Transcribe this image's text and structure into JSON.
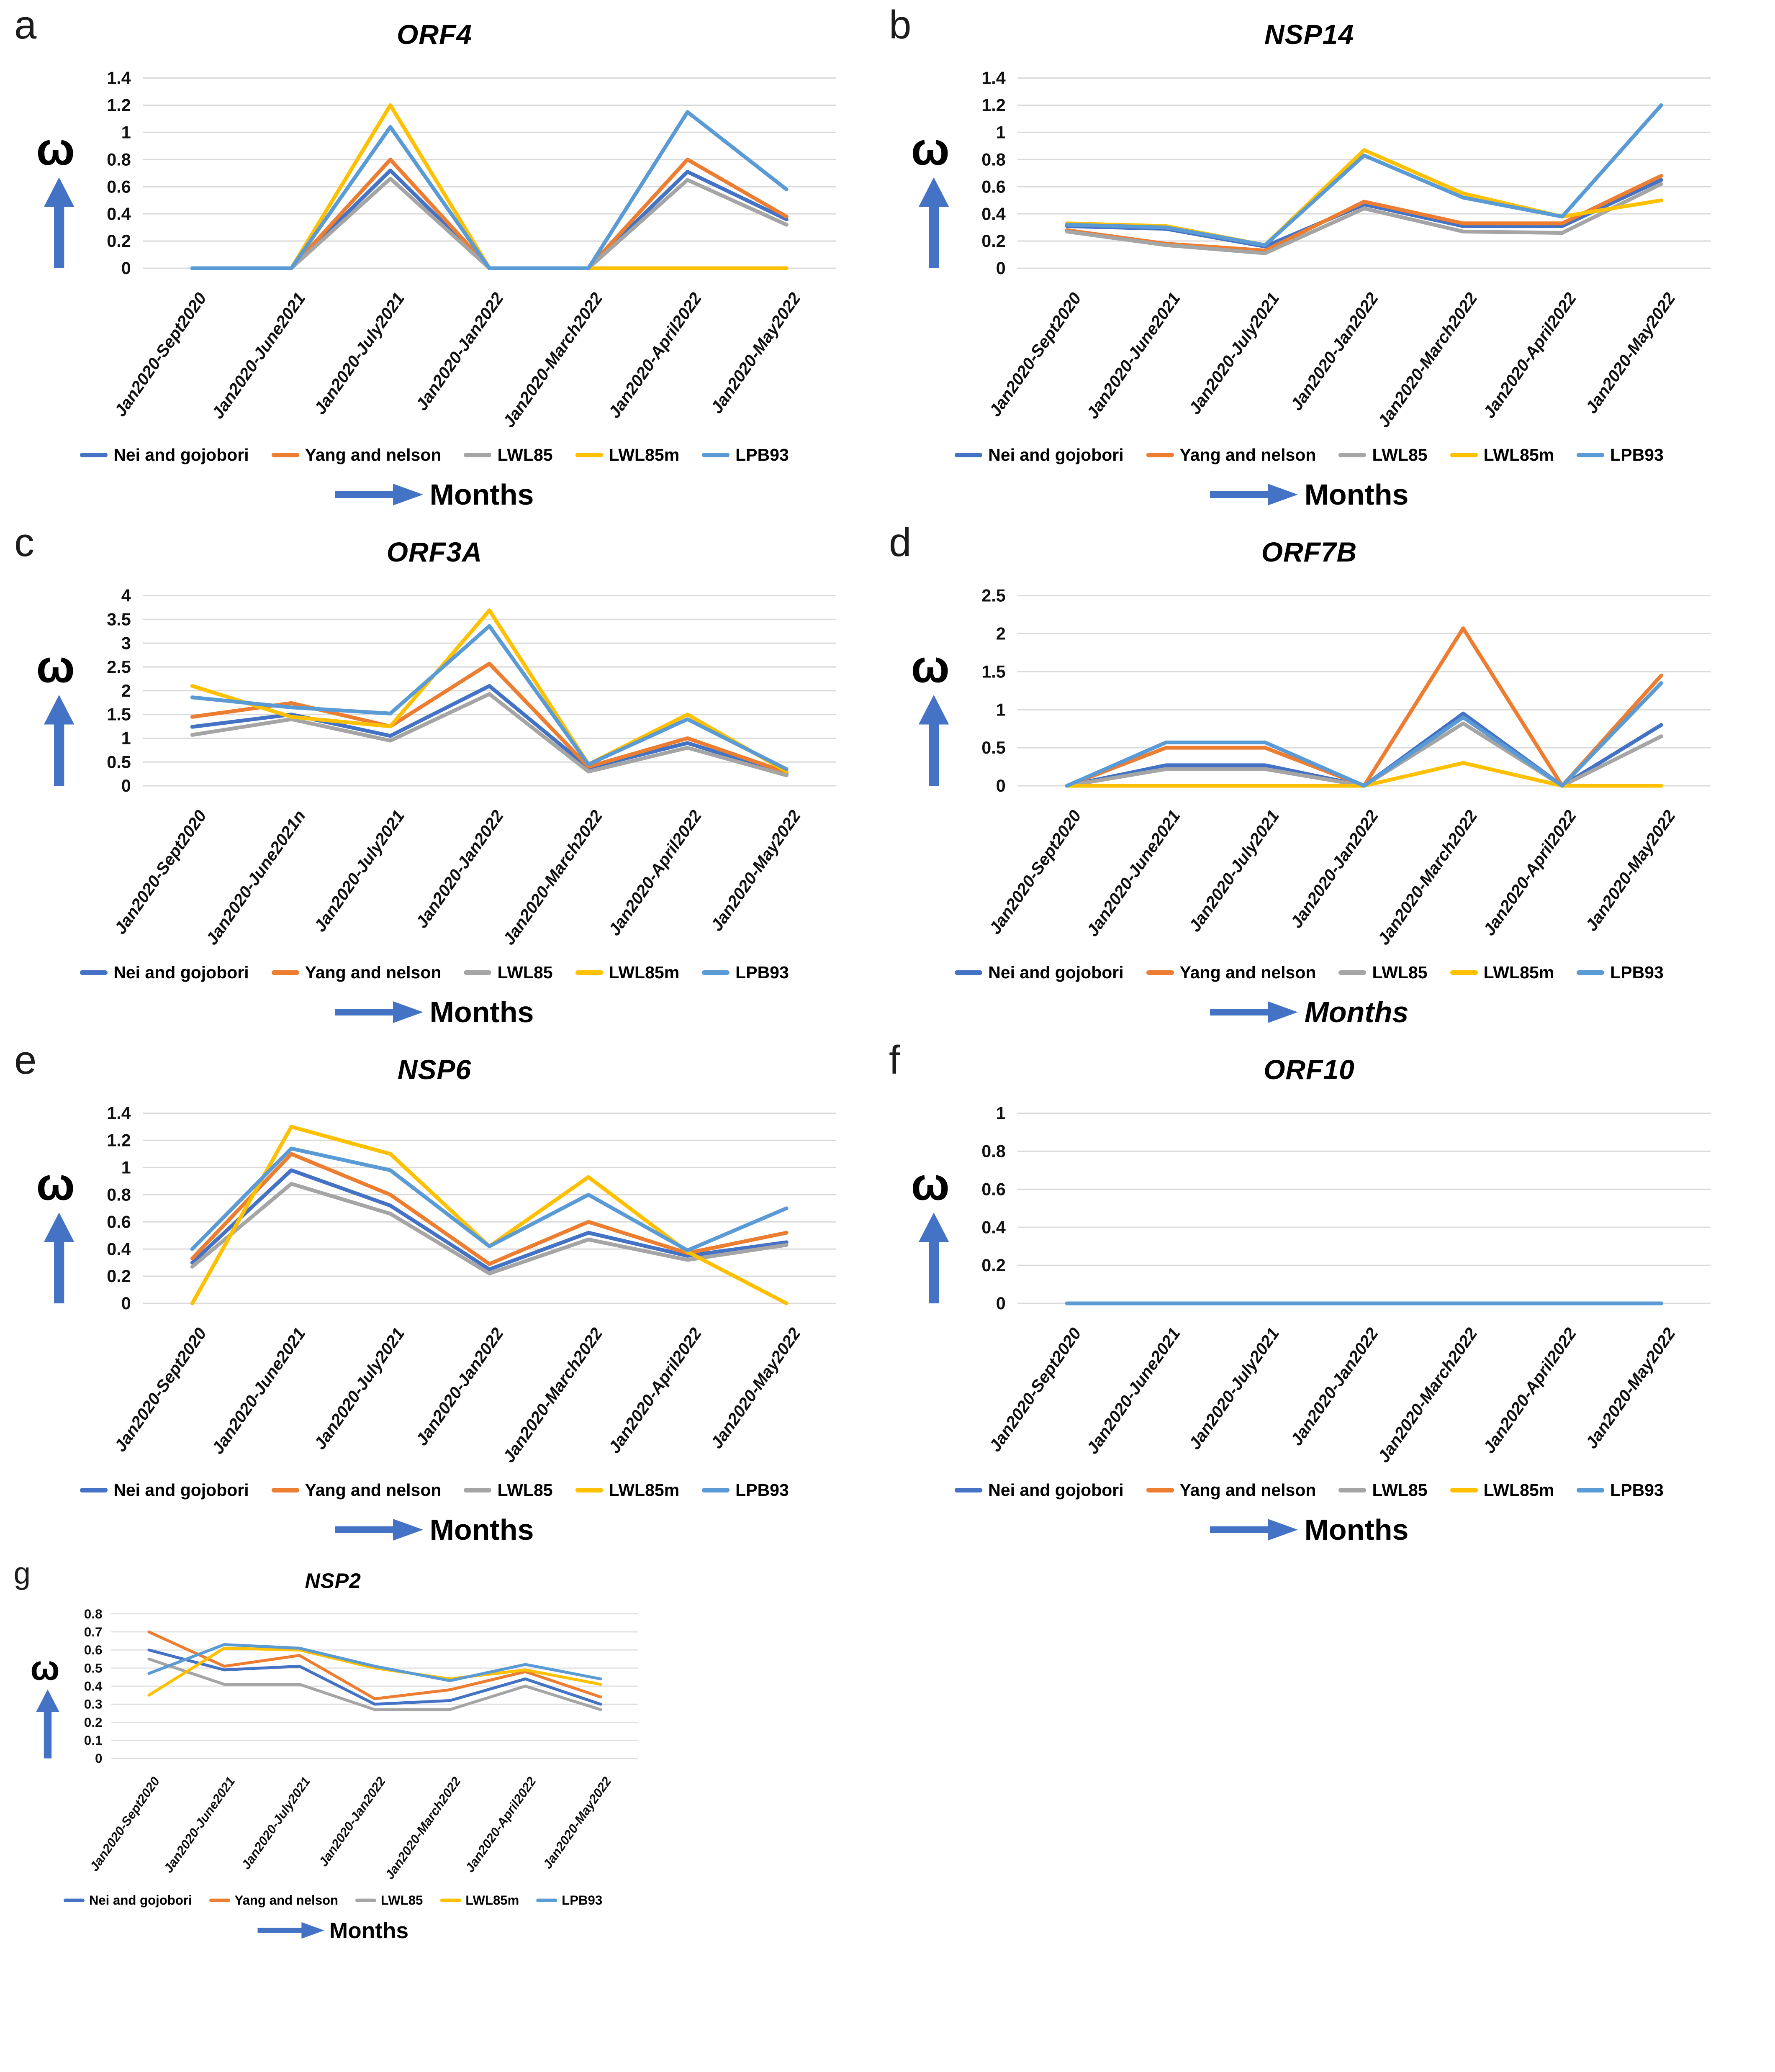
{
  "figure": {
    "axis": {
      "y_symbol": "ω",
      "x_label": "Months"
    },
    "colors": {
      "arrow": "#4472C4",
      "grid": "#DADADA",
      "nei_and_gojobori": "#4472C4",
      "yang_and_nelson": "#ED7D31",
      "lwl85": "#A5A5A5",
      "lwl85m": "#FFC000",
      "lpb93": "#5B9BD5"
    }
  },
  "chart_data": [
    {
      "panel_letter": "a",
      "type": "line",
      "title": "ORF4",
      "ylim": [
        0,
        1.4
      ],
      "ytick_step": 0.2,
      "grid": true,
      "legend_position": "bottom",
      "xlabel_italic": false,
      "categories": [
        "Jan2020-Sept2020",
        "Jan2020-June2021",
        "Jan2020-July2021",
        "Jan2020-Jan2022",
        "Jan2020-March2022",
        "Jan2020-April2022",
        "Jan2020-May2022"
      ],
      "series": [
        {
          "name": "Nei and gojobori",
          "color": "#4472C4",
          "values": [
            0,
            0,
            0.72,
            0,
            0,
            0.71,
            0.36
          ]
        },
        {
          "name": "Yang and nelson",
          "color": "#ED7D31",
          "values": [
            0,
            0,
            0.8,
            0,
            0,
            0.8,
            0.38
          ]
        },
        {
          "name": "LWL85",
          "color": "#A5A5A5",
          "values": [
            0,
            0,
            0.66,
            0,
            0,
            0.65,
            0.32
          ]
        },
        {
          "name": "LWL85m",
          "color": "#FFC000",
          "values": [
            0,
            0,
            1.2,
            0,
            0,
            0,
            0
          ]
        },
        {
          "name": "LPB93",
          "color": "#5B9BD5",
          "values": [
            0,
            0,
            1.04,
            0,
            0,
            1.15,
            0.58
          ]
        }
      ]
    },
    {
      "panel_letter": "b",
      "type": "line",
      "title": "NSP14",
      "ylim": [
        0,
        1.4
      ],
      "ytick_step": 0.2,
      "grid": true,
      "legend_position": "bottom",
      "xlabel_italic": false,
      "categories": [
        "Jan2020-Sept2020",
        "Jan2020-June2021",
        "Jan2020-July2021",
        "Jan2020-Jan2022",
        "Jan2020-March2022",
        "Jan2020-April2022",
        "Jan2020-May2022"
      ],
      "series": [
        {
          "name": "Nei and gojobori",
          "color": "#4472C4",
          "values": [
            0.31,
            0.29,
            0.16,
            0.47,
            0.31,
            0.31,
            0.65
          ]
        },
        {
          "name": "Yang and nelson",
          "color": "#ED7D31",
          "values": [
            0.28,
            0.18,
            0.13,
            0.49,
            0.33,
            0.33,
            0.68
          ]
        },
        {
          "name": "LWL85",
          "color": "#A5A5A5",
          "values": [
            0.27,
            0.17,
            0.11,
            0.44,
            0.27,
            0.26,
            0.62
          ]
        },
        {
          "name": "LWL85m",
          "color": "#FFC000",
          "values": [
            0.33,
            0.31,
            0.17,
            0.87,
            0.55,
            0.38,
            0.5
          ]
        },
        {
          "name": "LPB93",
          "color": "#5B9BD5",
          "values": [
            0.32,
            0.3,
            0.17,
            0.83,
            0.52,
            0.38,
            1.2
          ]
        }
      ]
    },
    {
      "panel_letter": "c",
      "type": "line",
      "title": "ORF3A",
      "ylim": [
        0,
        4
      ],
      "ytick_step": 0.5,
      "grid": true,
      "legend_position": "bottom",
      "xlabel_italic": false,
      "categories": [
        "Jan2020-Sept2020",
        "Jan2020-June2021n",
        "Jan2020-July2021",
        "Jan2020-Jan2022",
        "Jan2020-March2022",
        "Jan2020-April2022",
        "Jan2020-May2022"
      ],
      "series": [
        {
          "name": "Nei and gojobori",
          "color": "#4472C4",
          "values": [
            1.24,
            1.5,
            1.05,
            2.1,
            0.38,
            0.9,
            0.25
          ]
        },
        {
          "name": "Yang and nelson",
          "color": "#ED7D31",
          "values": [
            1.45,
            1.74,
            1.25,
            2.57,
            0.4,
            1.0,
            0.28
          ]
        },
        {
          "name": "LWL85",
          "color": "#A5A5A5",
          "values": [
            1.07,
            1.4,
            0.95,
            1.93,
            0.3,
            0.8,
            0.22
          ]
        },
        {
          "name": "LWL85m",
          "color": "#FFC000",
          "values": [
            2.1,
            1.45,
            1.25,
            3.69,
            0.45,
            1.5,
            0.3
          ]
        },
        {
          "name": "LPB93",
          "color": "#5B9BD5",
          "values": [
            1.86,
            1.65,
            1.52,
            3.36,
            0.45,
            1.4,
            0.35
          ]
        }
      ]
    },
    {
      "panel_letter": "d",
      "type": "line",
      "title": "ORF7B",
      "ylim": [
        0,
        2.5
      ],
      "ytick_step": 0.5,
      "grid": true,
      "legend_position": "bottom",
      "xlabel_italic": true,
      "categories": [
        "Jan2020-Sept2020",
        "Jan2020-June2021",
        "Jan2020-July2021",
        "Jan2020-Jan2022",
        "Jan2020-March2022",
        "Jan2020-April2022",
        "Jan2020-May2022"
      ],
      "series": [
        {
          "name": "Nei and gojobori",
          "color": "#4472C4",
          "values": [
            0,
            0.27,
            0.27,
            0,
            0.95,
            0,
            0.8
          ]
        },
        {
          "name": "Yang and nelson",
          "color": "#ED7D31",
          "values": [
            0,
            0.5,
            0.5,
            0,
            2.07,
            0,
            1.45
          ]
        },
        {
          "name": "LWL85",
          "color": "#A5A5A5",
          "values": [
            0,
            0.22,
            0.22,
            0,
            0.82,
            0,
            0.65
          ]
        },
        {
          "name": "LWL85m",
          "color": "#FFC000",
          "values": [
            0,
            0,
            0,
            0,
            0.3,
            0,
            0
          ]
        },
        {
          "name": "LPB93",
          "color": "#5B9BD5",
          "values": [
            0,
            0.57,
            0.57,
            0,
            0.9,
            0,
            1.35
          ]
        }
      ]
    },
    {
      "panel_letter": "e",
      "type": "line",
      "title": "NSP6",
      "ylim": [
        0,
        1.4
      ],
      "ytick_step": 0.2,
      "grid": true,
      "legend_position": "bottom",
      "xlabel_italic": false,
      "categories": [
        "Jan2020-Sept2020",
        "Jan2020-June2021",
        "Jan2020-July2021",
        "Jan2020-Jan2022",
        "Jan2020-March2022",
        "Jan2020-April2022",
        "Jan2020-May2022"
      ],
      "series": [
        {
          "name": "Nei and gojobori",
          "color": "#4472C4",
          "values": [
            0.3,
            0.98,
            0.72,
            0.25,
            0.52,
            0.35,
            0.45
          ]
        },
        {
          "name": "Yang and nelson",
          "color": "#ED7D31",
          "values": [
            0.33,
            1.1,
            0.8,
            0.29,
            0.6,
            0.37,
            0.52
          ]
        },
        {
          "name": "LWL85",
          "color": "#A5A5A5",
          "values": [
            0.27,
            0.88,
            0.66,
            0.22,
            0.47,
            0.32,
            0.43
          ]
        },
        {
          "name": "LWL85m",
          "color": "#FFC000",
          "values": [
            0,
            1.3,
            1.1,
            0.42,
            0.93,
            0.38,
            0
          ]
        },
        {
          "name": "LPB93",
          "color": "#5B9BD5",
          "values": [
            0.4,
            1.14,
            0.98,
            0.42,
            0.8,
            0.39,
            0.7
          ]
        }
      ]
    },
    {
      "panel_letter": "f",
      "type": "line",
      "title": "ORF10",
      "ylim": [
        0,
        1
      ],
      "ytick_step": 0.2,
      "grid": true,
      "legend_position": "bottom",
      "xlabel_italic": false,
      "categories": [
        "Jan2020-Sept2020",
        "Jan2020-June2021",
        "Jan2020-July2021",
        "Jan2020-Jan2022",
        "Jan2020-March2022",
        "Jan2020-April2022",
        "Jan2020-May2022"
      ],
      "series": [
        {
          "name": "Nei and gojobori",
          "color": "#4472C4",
          "values": [
            0,
            0,
            0,
            0,
            0,
            0,
            0
          ]
        },
        {
          "name": "Yang and nelson",
          "color": "#ED7D31",
          "values": [
            0,
            0,
            0,
            0,
            0,
            0,
            0
          ]
        },
        {
          "name": "LWL85",
          "color": "#A5A5A5",
          "values": [
            0,
            0,
            0,
            0,
            0,
            0,
            0
          ]
        },
        {
          "name": "LWL85m",
          "color": "#FFC000",
          "values": [
            0,
            0,
            0,
            0,
            0,
            0,
            0
          ]
        },
        {
          "name": "LPB93",
          "color": "#5B9BD5",
          "values": [
            0,
            0,
            0,
            0,
            0,
            0,
            0
          ]
        }
      ]
    },
    {
      "panel_letter": "g",
      "type": "line",
      "title": "NSP2",
      "ylim": [
        0,
        0.8
      ],
      "ytick_step": 0.1,
      "grid": true,
      "legend_position": "bottom",
      "xlabel_italic": false,
      "categories": [
        "Jan2020-Sept2020",
        "Jan2020-June2021",
        "Jan2020-July2021",
        "Jan2020-Jan2022",
        "Jan2020-March2022",
        "Jan2020-April2022",
        "Jan2020-May2022"
      ],
      "series": [
        {
          "name": "Nei and gojobori",
          "color": "#4472C4",
          "values": [
            0.6,
            0.49,
            0.51,
            0.3,
            0.32,
            0.44,
            0.3
          ]
        },
        {
          "name": "Yang and nelson",
          "color": "#ED7D31",
          "values": [
            0.7,
            0.51,
            0.57,
            0.33,
            0.38,
            0.48,
            0.34
          ]
        },
        {
          "name": "LWL85",
          "color": "#A5A5A5",
          "values": [
            0.55,
            0.41,
            0.41,
            0.27,
            0.27,
            0.4,
            0.27
          ]
        },
        {
          "name": "LWL85m",
          "color": "#FFC000",
          "values": [
            0.35,
            0.61,
            0.6,
            0.5,
            0.44,
            0.49,
            0.41
          ]
        },
        {
          "name": "LPB93",
          "color": "#5B9BD5",
          "values": [
            0.47,
            0.63,
            0.61,
            0.51,
            0.43,
            0.52,
            0.44
          ]
        }
      ]
    }
  ]
}
